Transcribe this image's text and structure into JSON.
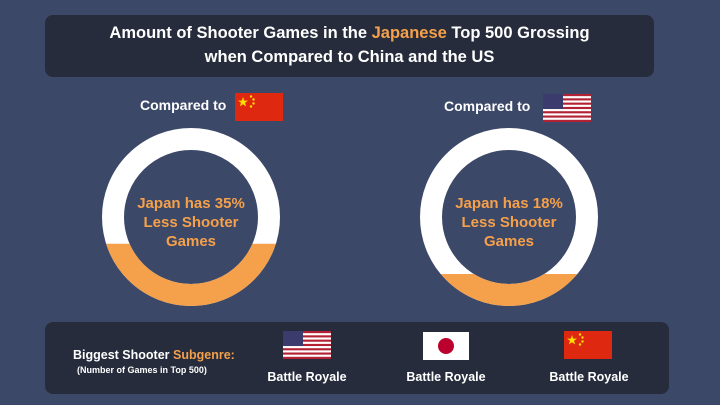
{
  "title": {
    "line1_pre": "Amount of Shooter Games in the ",
    "line1_accent": "Japanese",
    "line1_post": " Top 500 Grossing",
    "line2": "when Compared to China and the US"
  },
  "colors": {
    "background": "#3c4868",
    "panel": "#262c3b",
    "accent": "#f5a04a",
    "ring": "#ffffff"
  },
  "chart_data": {
    "type": "donut",
    "series": [
      {
        "compare_label": "Compared to",
        "flag": "china-flag",
        "value": 35,
        "line1": "Japan has 35%",
        "line2": "Less Shooter",
        "line3": "Games"
      },
      {
        "compare_label": "Compared to",
        "flag": "us-flag",
        "value": 18,
        "line1": "Japan has 18%",
        "line2": "Less Shooter",
        "line3": "Games"
      }
    ]
  },
  "bottom": {
    "label_pre": "Biggest Shooter ",
    "label_accent": "Subgenre:",
    "sublabel": "(Number of Games in Top 500)",
    "countries": [
      {
        "flag": "us-flag",
        "genre": "Battle Royale"
      },
      {
        "flag": "japan-flag",
        "genre": "Battle Royale"
      },
      {
        "flag": "china-flag",
        "genre": "Battle Royale"
      }
    ]
  }
}
